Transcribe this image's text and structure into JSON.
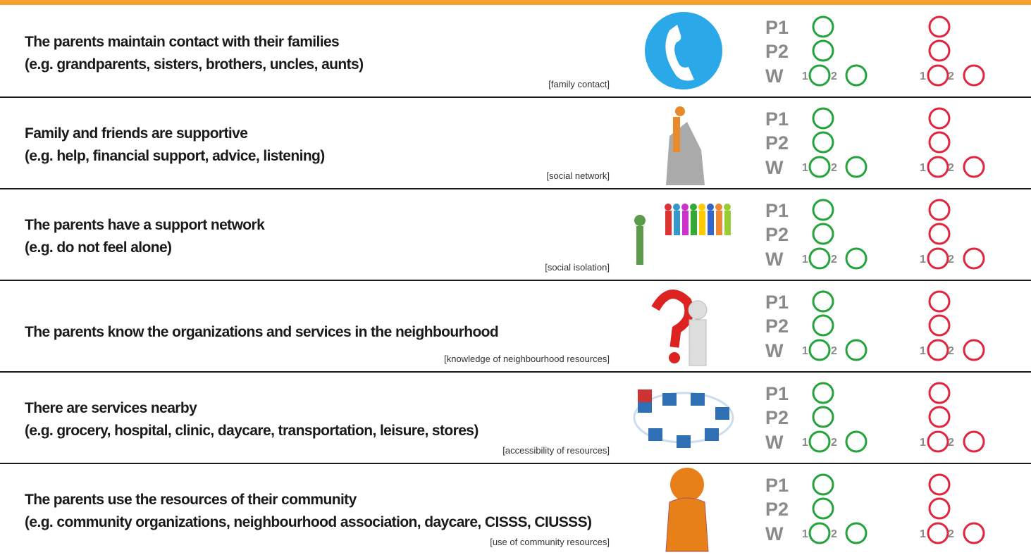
{
  "scale": {
    "p1": "P1",
    "p2": "P2",
    "w": "W",
    "n1": "1",
    "n2": "2"
  },
  "rows": [
    {
      "lines": [
        "The parents maintain contact with their families",
        "(e.g. grandparents, sisters, brothers, uncles, aunts)"
      ],
      "tag": "[family contact]"
    },
    {
      "lines": [
        "Family and friends are supportive",
        "(e.g. help, financial support, advice, listening)"
      ],
      "tag": "[social network]"
    },
    {
      "lines": [
        "The parents have a support network",
        "(e.g. do not feel alone)"
      ],
      "tag": "[social isolation]"
    },
    {
      "lines": [
        "The parents know the organizations and services in the neighbourhood"
      ],
      "tag": "[knowledge of neighbourhood resources]"
    },
    {
      "lines": [
        "There are services nearby",
        "(e.g. grocery, hospital, clinic, daycare, transportation, leisure, stores)"
      ],
      "tag": "[accessibility of resources]"
    },
    {
      "lines": [
        "The parents use the resources of their community",
        "(e.g. community organizations, neighbourhood association, daycare, CISSS, CIUSSS)"
      ],
      "tag": "[use of community resources]"
    }
  ]
}
